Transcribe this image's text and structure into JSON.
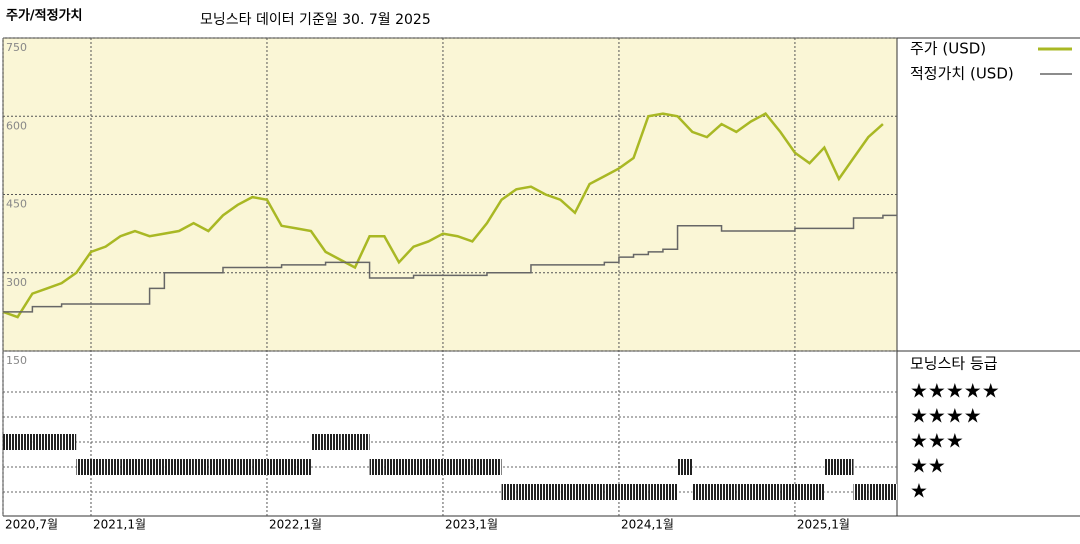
{
  "chart_data": {
    "type": "line",
    "title": "주가/적정가치",
    "subtitle": "모닝스타 데이터 기준일 30. 7월 2025",
    "x": [
      2020.5,
      2020.583,
      2020.667,
      2020.75,
      2020.833,
      2020.917,
      2021,
      2021.083,
      2021.167,
      2021.25,
      2021.333,
      2021.417,
      2021.5,
      2021.583,
      2021.667,
      2021.75,
      2021.833,
      2021.917,
      2022,
      2022.083,
      2022.167,
      2022.25,
      2022.333,
      2022.417,
      2022.5,
      2022.583,
      2022.667,
      2022.75,
      2022.833,
      2022.917,
      2023,
      2023.083,
      2023.167,
      2023.25,
      2023.333,
      2023.417,
      2023.5,
      2023.583,
      2023.667,
      2023.75,
      2023.833,
      2023.917,
      2024,
      2024.083,
      2024.167,
      2024.25,
      2024.333,
      2024.417,
      2024.5,
      2024.583,
      2024.667,
      2024.75,
      2024.833,
      2024.917,
      2025,
      2025.083,
      2025.167,
      2025.25,
      2025.333,
      2025.417,
      2025.5
    ],
    "series": [
      {
        "name": "주가 (USD)",
        "color": "#a9b824",
        "step": false,
        "values": [
          225,
          215,
          260,
          270,
          280,
          300,
          340,
          350,
          370,
          380,
          370,
          375,
          380,
          395,
          380,
          410,
          430,
          445,
          440,
          390,
          385,
          380,
          340,
          325,
          310,
          370,
          370,
          320,
          350,
          360,
          375,
          370,
          360,
          395,
          440,
          460,
          465,
          450,
          440,
          415,
          470,
          485,
          500,
          520,
          600,
          605,
          600,
          570,
          560,
          585,
          570,
          590,
          605,
          570,
          530,
          510,
          540,
          480,
          520,
          560,
          585
        ]
      },
      {
        "name": "적정가치 (USD)",
        "color": "#666666",
        "step": true,
        "values": [
          225,
          225,
          235,
          235,
          240,
          240,
          240,
          240,
          240,
          240,
          270,
          300,
          300,
          300,
          300,
          310,
          310,
          310,
          310,
          315,
          315,
          315,
          320,
          320,
          320,
          290,
          290,
          290,
          295,
          295,
          295,
          295,
          295,
          300,
          300,
          300,
          315,
          315,
          315,
          315,
          315,
          320,
          330,
          335,
          340,
          345,
          390,
          390,
          390,
          380,
          380,
          380,
          380,
          380,
          385,
          385,
          385,
          385,
          405,
          405,
          410
        ]
      }
    ],
    "xlim": [
      2020.5,
      2025.58
    ],
    "xticks": [
      {
        "value": 2020.5,
        "label": "2020,7월"
      },
      {
        "value": 2021,
        "label": "2021,1월"
      },
      {
        "value": 2022,
        "label": "2022,1월"
      },
      {
        "value": 2023,
        "label": "2023,1월"
      },
      {
        "value": 2024,
        "label": "2024,1월"
      },
      {
        "value": 2025,
        "label": "2025,1월"
      }
    ],
    "ylim": [
      150,
      750
    ],
    "yticks": [
      150,
      300,
      450,
      600,
      750
    ],
    "grid": true,
    "rating_title": "모닝스타 등급",
    "rating_levels": [
      "★★★★★",
      "★★★★",
      "★★★",
      "★★",
      "★"
    ],
    "ratings": [
      3,
      3,
      3,
      3,
      3,
      2,
      2,
      2,
      2,
      2,
      2,
      2,
      2,
      2,
      2,
      2,
      2,
      2,
      2,
      2,
      2,
      3,
      3,
      3,
      3,
      2,
      2,
      2,
      2,
      2,
      2,
      2,
      2,
      2,
      1,
      1,
      1,
      1,
      1,
      1,
      1,
      1,
      1,
      1,
      1,
      1,
      2,
      1,
      1,
      1,
      1,
      1,
      1,
      1,
      1,
      1,
      2,
      2,
      1,
      1,
      1
    ]
  }
}
